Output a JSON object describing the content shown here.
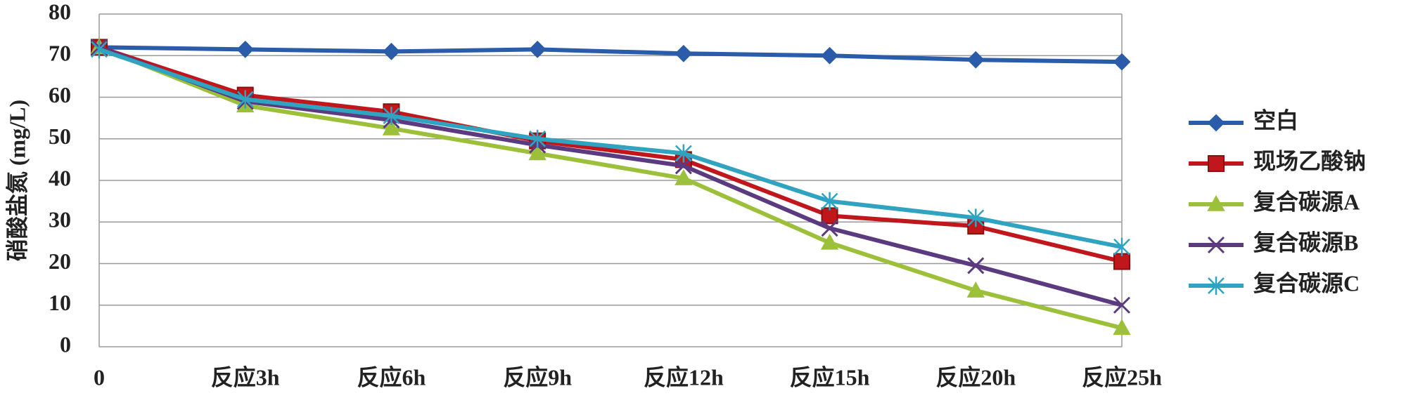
{
  "chart_data": {
    "type": "line",
    "y_label": "硝酸盐氮 (mg/L)",
    "categories": [
      "0",
      "反应3h",
      "反应6h",
      "反应9h",
      "反应12h",
      "反应15h",
      "反应20h",
      "反应25h"
    ],
    "series": [
      {
        "name": "空白",
        "color": "#2a5caa",
        "marker": "diamond",
        "values": [
          72,
          71.5,
          71,
          71.5,
          70.5,
          70,
          69,
          68.5
        ]
      },
      {
        "name": "现场乙酸钠",
        "color": "#c0171c",
        "marker": "square",
        "values": [
          72,
          60.5,
          56.5,
          49.5,
          45,
          31.5,
          29,
          20.5
        ]
      },
      {
        "name": "复合碳源A",
        "color": "#9dc03a",
        "marker": "triangle",
        "values": [
          72,
          58,
          52.5,
          46.5,
          40.5,
          25,
          13.5,
          4.5
        ]
      },
      {
        "name": "复合碳源B",
        "color": "#5b3a80",
        "marker": "x",
        "values": [
          72,
          59,
          54.5,
          48.5,
          43.5,
          28.5,
          19.5,
          10
        ]
      },
      {
        "name": "复合碳源C",
        "color": "#2fa3c0",
        "marker": "star",
        "values": [
          71.5,
          59.5,
          55.5,
          50,
          46.5,
          35,
          31,
          24
        ]
      }
    ],
    "ylim": [
      0,
      80
    ],
    "yticks": [
      0,
      10,
      20,
      30,
      40,
      50,
      60,
      70,
      80
    ],
    "grid": true,
    "legend": "right"
  }
}
